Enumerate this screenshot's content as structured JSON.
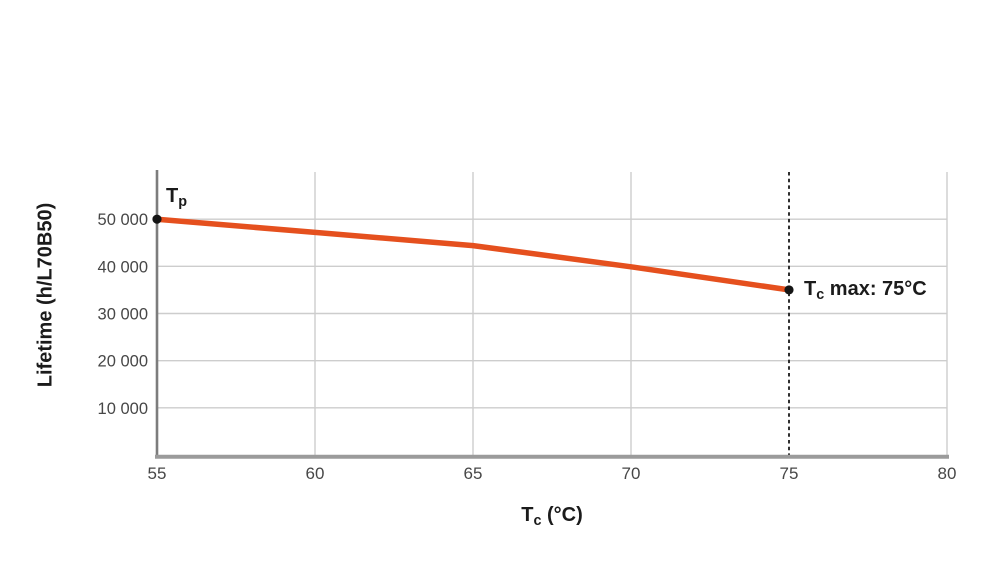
{
  "chart_data": {
    "type": "line",
    "title": "",
    "xlabel": {
      "base": "T",
      "sub": "c",
      "rest": " (°C)"
    },
    "ylabel": "Lifetime (h/L70B50)",
    "x": [
      55,
      60,
      65,
      70,
      75
    ],
    "y": [
      50000,
      47200,
      44400,
      39900,
      35000
    ],
    "x_ticks": [
      55,
      60,
      65,
      70,
      75,
      80
    ],
    "x_tick_labels": [
      "55",
      "60",
      "65",
      "70",
      "75",
      "80"
    ],
    "y_ticks": [
      10000,
      20000,
      30000,
      40000,
      50000
    ],
    "y_tick_labels": [
      "10 000",
      "20 000",
      "30 000",
      "40 000",
      "50 000"
    ],
    "xlim": [
      55,
      80
    ],
    "ylim": [
      0,
      60000
    ],
    "grid": true,
    "legend": false,
    "dashed_vline_x": 75,
    "marker_points": "first_and_last",
    "annotations": {
      "start": {
        "base": "T",
        "sub": "p",
        "rest": ""
      },
      "end": {
        "base": "T",
        "sub": "c",
        "rest": " max: 75°C"
      }
    }
  },
  "colors": {
    "background": "#ffffff",
    "line": "#e5501e",
    "grid": "#cdcdcd",
    "y_axis": "#7d7d7d",
    "x_axis": "#9b9b9b",
    "dashed_line": "#2f2f2f",
    "dot": "#151515",
    "tick_text": "#474747",
    "label_text": "#1b1b1b"
  }
}
